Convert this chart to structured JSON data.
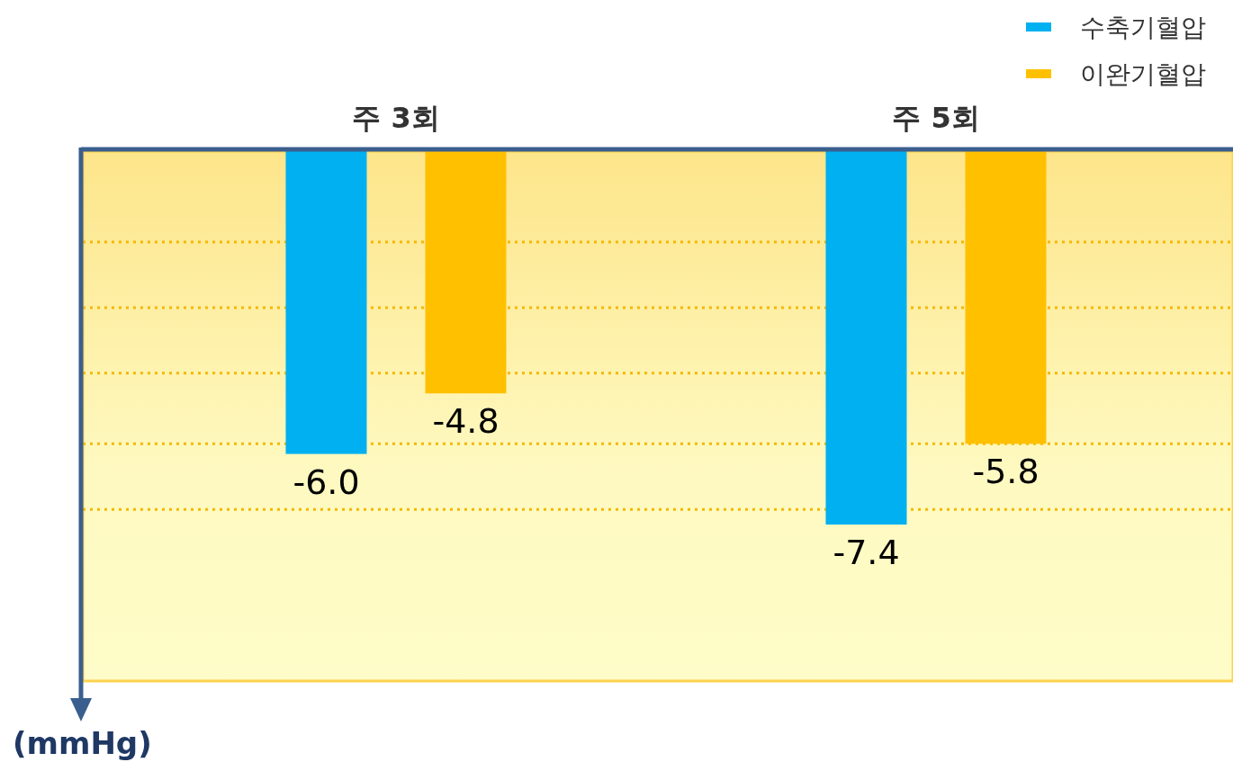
{
  "chart_data": {
    "type": "bar",
    "categories": [
      "주 3회",
      "주 5회"
    ],
    "series": [
      {
        "name": "수축기혈압",
        "color": "#00b0f0",
        "values": [
          -6.0,
          -7.4
        ],
        "value_labels": [
          "-6.0",
          "-7.4"
        ]
      },
      {
        "name": "이완기혈압",
        "color": "#ffc000",
        "values": [
          -4.8,
          -5.8
        ],
        "value_labels": [
          "-4.8",
          "-5.8"
        ]
      }
    ],
    "ylabel": "(mmHg)",
    "ylim": [
      -10.5,
      0
    ],
    "yticks": [
      {
        "value": -1.8,
        "label": null
      },
      {
        "value": -3.1,
        "label": null
      },
      {
        "value": -4.4,
        "label": null
      },
      {
        "value": -5.8,
        "label": null
      },
      {
        "value": -7.1,
        "label": null
      }
    ],
    "grid": "y",
    "legend": "top right"
  }
}
